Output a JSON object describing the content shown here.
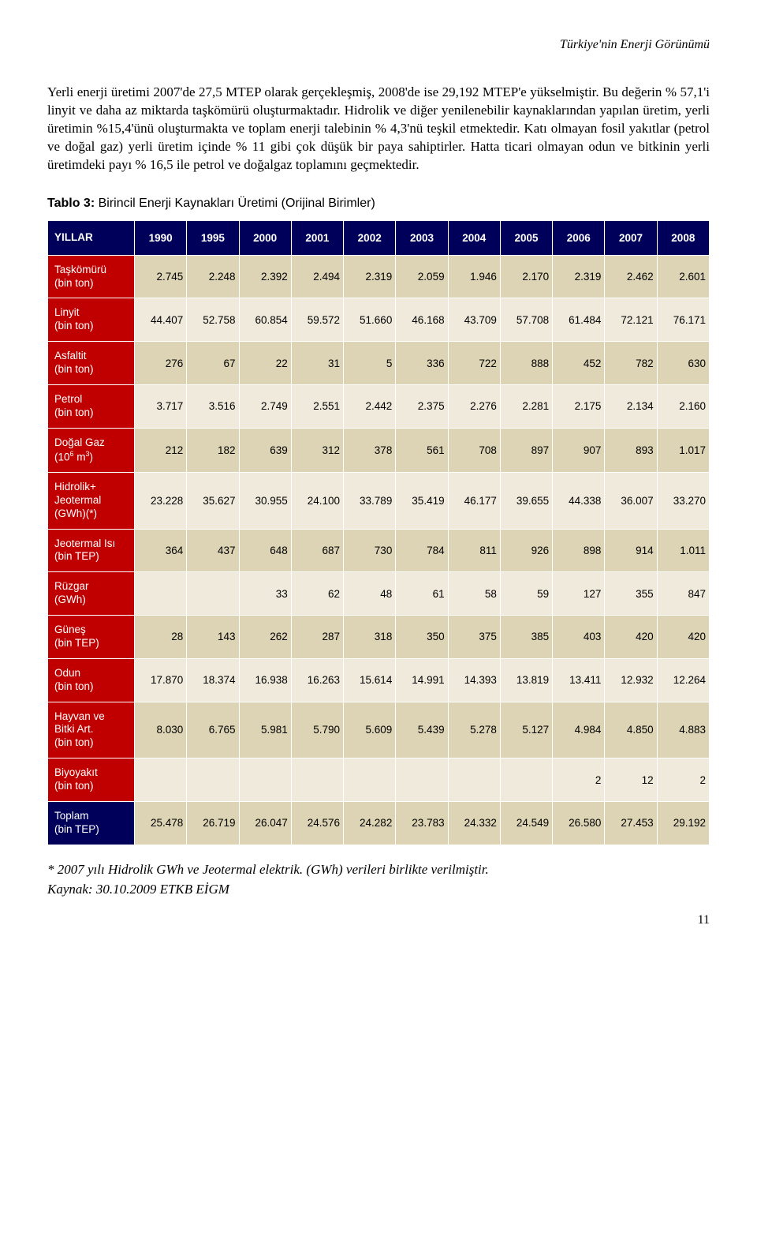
{
  "header": "Türkiye'nin Enerji Görünümü",
  "paragraph": "Yerli enerji üretimi 2007'de 27,5 MTEP olarak gerçekleşmiş, 2008'de ise 29,192 MTEP'e yükselmiştir. Bu değerin % 57,1'i linyit ve daha az miktarda taşkömürü oluşturmaktadır. Hidrolik ve diğer yenilenebilir kaynaklarından yapılan üretim, yerli üretimin %15,4'ünü oluşturmakta ve toplam enerji talebinin % 4,3'nü teşkil etmektedir. Katı olmayan fosil yakıtlar (petrol ve doğal gaz) yerli üretim içinde % 11 gibi çok düşük bir paya sahiptirler. Hatta ticari olmayan odun ve bitkinin yerli üretimdeki payı % 16,5 ile petrol ve doğalgaz toplamını geçmektedir.",
  "caption_bold": "Tablo 3:",
  "caption_rest": " Birincil Enerji Kaynakları Üretimi (Orijinal Birimler)",
  "table": {
    "year_header": "YILLAR",
    "years": [
      "1990",
      "1995",
      "2000",
      "2001",
      "2002",
      "2003",
      "2004",
      "2005",
      "2006",
      "2007",
      "2008"
    ],
    "colors": {
      "header_bg": "#00005a",
      "row_red": "#c00000",
      "row_darkblue": "#00005a",
      "cell_tan": "#dcd4b4",
      "cell_alt": "#efeadb",
      "border": "#ffffff"
    },
    "rows": [
      {
        "label": "Taşkömürü\n(bin ton)",
        "label_bg": "red",
        "vals": [
          "2.745",
          "2.248",
          "2.392",
          "2.494",
          "2.319",
          "2.059",
          "1.946",
          "2.170",
          "2.319",
          "2.462",
          "2.601"
        ]
      },
      {
        "label": "Linyit\n (bin ton)",
        "label_bg": "red",
        "vals": [
          "44.407",
          "52.758",
          "60.854",
          "59.572",
          "51.660",
          "46.168",
          "43.709",
          "57.708",
          "61.484",
          "72.121",
          "76.171"
        ]
      },
      {
        "label": "Asfaltit\n(bin ton)",
        "label_bg": "red",
        "vals": [
          "276",
          "67",
          "22",
          "31",
          "5",
          "336",
          "722",
          "888",
          "452",
          "782",
          "630"
        ]
      },
      {
        "label": "Petrol\n(bin ton)",
        "label_bg": "red",
        "vals": [
          "3.717",
          "3.516",
          "2.749",
          "2.551",
          "2.442",
          "2.375",
          "2.276",
          "2.281",
          "2.175",
          "2.134",
          "2.160"
        ]
      },
      {
        "label": "Doğal Gaz\n(106 m³)",
        "label_bg": "red",
        "sup": "3",
        "vals": [
          "212",
          "182",
          "639",
          "312",
          "378",
          "561",
          "708",
          "897",
          "907",
          "893",
          "1.017"
        ]
      },
      {
        "label": "Hidrolik+\nJeotermal\n(GWh)(*)",
        "label_bg": "red",
        "vals": [
          "23.228",
          "35.627",
          "30.955",
          "24.100",
          "33.789",
          "35.419",
          "46.177",
          "39.655",
          "44.338",
          "36.007",
          "33.270"
        ]
      },
      {
        "label": "Jeotermal Isı\n(bin TEP)",
        "label_bg": "red",
        "vals": [
          "364",
          "437",
          "648",
          "687",
          "730",
          "784",
          "811",
          "926",
          "898",
          "914",
          "1.011"
        ]
      },
      {
        "label": "Rüzgar\n(GWh)",
        "label_bg": "red",
        "vals": [
          "",
          "",
          "33",
          "62",
          "48",
          "61",
          "58",
          "59",
          "127",
          "355",
          "847"
        ]
      },
      {
        "label": "Güneş\n(bin TEP)",
        "label_bg": "red",
        "vals": [
          "28",
          "143",
          "262",
          "287",
          "318",
          "350",
          "375",
          "385",
          "403",
          "420",
          "420"
        ]
      },
      {
        "label": "Odun\n(bin ton)",
        "label_bg": "red",
        "vals": [
          "17.870",
          "18.374",
          "16.938",
          "16.263",
          "15.614",
          "14.991",
          "14.393",
          "13.819",
          "13.411",
          "12.932",
          "12.264"
        ]
      },
      {
        "label": "Hayvan ve\nBitki Art.\n(bin ton)",
        "label_bg": "red",
        "vals": [
          "8.030",
          "6.765",
          "5.981",
          "5.790",
          "5.609",
          "5.439",
          "5.278",
          "5.127",
          "4.984",
          "4.850",
          "4.883"
        ]
      },
      {
        "label": "Biyoyakıt\n(bin ton)",
        "label_bg": "red",
        "vals": [
          "",
          "",
          "",
          "",
          "",
          "",
          "",
          "",
          "2",
          "12",
          "2"
        ]
      },
      {
        "label": "Toplam\n (bin TEP)",
        "label_bg": "darkblue",
        "vals": [
          "25.478",
          "26.719",
          "26.047",
          "24.576",
          "24.282",
          "23.783",
          "24.332",
          "24.549",
          "26.580",
          "27.453",
          "29.192"
        ]
      }
    ]
  },
  "footnote1": "*  2007 yılı Hidrolik  GWh ve Jeotermal elektrik. (GWh) verileri birlikte verilmiştir.",
  "footnote2": "   Kaynak: 30.10.2009 ETKB EİGM",
  "page_number": "11"
}
